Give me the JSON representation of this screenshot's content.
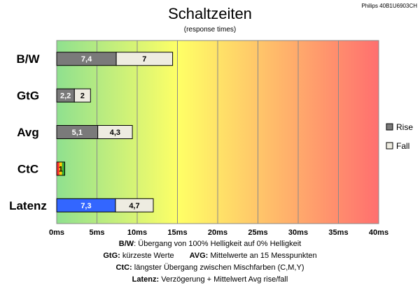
{
  "header": {
    "title": "Schaltzeiten",
    "subtitle": "(response times)",
    "model": "Philips 40B1U6903CH"
  },
  "chart_data": {
    "type": "bar",
    "orientation": "horizontal",
    "stacked": true,
    "categories": [
      "B/W",
      "GtG",
      "Avg",
      "CtC",
      "Latenz"
    ],
    "series": [
      {
        "name": "Rise",
        "values": [
          7.4,
          2.2,
          5.1,
          0.5,
          7.3
        ]
      },
      {
        "name": "Fall",
        "values": [
          7,
          2,
          4.3,
          0.5,
          4.7
        ]
      }
    ],
    "bar_labels": [
      [
        "7,4",
        "7"
      ],
      [
        "2,2",
        "2"
      ],
      [
        "5,1",
        "4,3"
      ],
      [
        "1",
        ""
      ],
      [
        "7,3",
        "4,7"
      ]
    ],
    "xlim": [
      0,
      40
    ],
    "xticks": [
      0,
      5,
      10,
      15,
      20,
      25,
      30,
      35,
      40
    ],
    "xtick_labels": [
      "0ms",
      "5ms",
      "10ms",
      "15ms",
      "20ms",
      "25ms",
      "30ms",
      "35ms",
      "40ms"
    ],
    "grid": true,
    "legend": {
      "placement": "right",
      "entries": [
        "Rise",
        "Fall"
      ]
    },
    "colors": {
      "rise": "#7a7a7a",
      "fall": "#eeece1",
      "latenz_rise": "#3366ff",
      "ctc_stripes": [
        "#ff3333",
        "#ffcc00",
        "#33aa33"
      ],
      "gradient": [
        "#8fe08f",
        "#ffff66",
        "#ff6f6f"
      ]
    }
  },
  "footnotes": {
    "line1_key": "B/W",
    "line1_text": ":  Übergang von 100% Helligkeit auf 0% Helligkeit",
    "line2a_key": "GtG:",
    "line2a_text": " kürzeste  Werte",
    "line2b_key": "AVG:",
    "line2b_text": " Mittelwerte  an 15 Messpunkten",
    "line3_key": "CtC:",
    "line3_text": " längster Übergang  zwischen Mischfarben  (C,M,Y)",
    "line4_key": "Latenz:",
    "line4_text": " Verzögerung  + Mittelwert Avg rise/fall"
  }
}
